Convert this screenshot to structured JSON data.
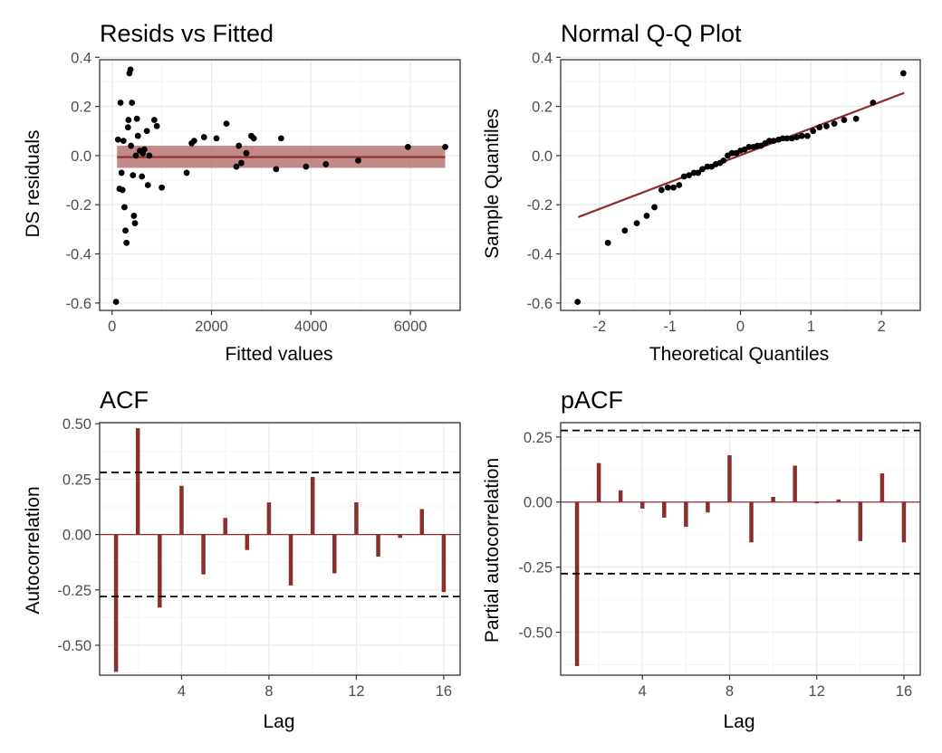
{
  "colors": {
    "mark": "#8B2E2E",
    "band": "#B56B6B",
    "point": "#000000",
    "grid_major": "#EBEBEB",
    "grid_minor": "#F5F5F5",
    "axis_text": "#4D4D4D",
    "panel_border": "#333333"
  },
  "chart_data": [
    {
      "type": "scatter",
      "title": "Resids vs Fitted",
      "xlabel": "Fitted values",
      "ylabel": "DS residuals",
      "xlim": [
        -250,
        7000
      ],
      "ylim": [
        -0.63,
        0.39
      ],
      "xticks": [
        0,
        2000,
        4000,
        6000
      ],
      "xtick_labels": [
        "0",
        "2000",
        "4000",
        "6000"
      ],
      "yticks": [
        -0.6,
        -0.4,
        -0.2,
        0.0,
        0.2,
        0.4
      ],
      "ytick_labels": [
        "-0.6",
        "-0.4",
        "-0.2",
        "0.0",
        "0.2",
        "0.4"
      ],
      "grid": true,
      "smooth": {
        "x": [
          100,
          6700
        ],
        "y": [
          -0.006,
          -0.006
        ],
        "band": [
          -0.05,
          0.04
        ]
      },
      "points": {
        "x": [
          80,
          120,
          150,
          170,
          190,
          210,
          230,
          250,
          270,
          290,
          320,
          330,
          350,
          370,
          380,
          400,
          420,
          440,
          460,
          480,
          500,
          520,
          560,
          600,
          620,
          650,
          700,
          720,
          750,
          850,
          900,
          1000,
          1500,
          1600,
          1650,
          1850,
          2100,
          2300,
          2500,
          2550,
          2600,
          2700,
          2800,
          2850,
          3300,
          3400,
          3900,
          4300,
          4950,
          5950,
          6700
        ],
        "y": [
          -0.595,
          0.065,
          -0.135,
          0.215,
          -0.07,
          -0.14,
          0.06,
          -0.21,
          -0.305,
          -0.355,
          0.115,
          0.145,
          0.335,
          0.35,
          0.04,
          0.215,
          -0.08,
          -0.245,
          -0.275,
          0.0,
          0.15,
          0.08,
          0.02,
          -0.085,
          0.01,
          0.025,
          0.1,
          -0.12,
          0.0,
          0.145,
          0.12,
          -0.13,
          -0.07,
          0.05,
          0.06,
          0.075,
          0.07,
          0.13,
          -0.045,
          0.04,
          -0.03,
          0.01,
          0.08,
          0.07,
          -0.055,
          0.07,
          -0.045,
          -0.035,
          -0.02,
          0.035,
          0.035
        ]
      }
    },
    {
      "type": "scatter",
      "title": "Normal Q-Q Plot",
      "xlabel": "Theoretical Quantiles",
      "ylabel": "Sample Quantiles",
      "xlim": [
        -2.55,
        2.55
      ],
      "ylim": [
        -0.63,
        0.39
      ],
      "xticks": [
        -2,
        -1,
        0,
        1,
        2
      ],
      "xtick_labels": [
        "-2",
        "-1",
        "0",
        "1",
        "2"
      ],
      "yticks": [
        -0.6,
        -0.4,
        -0.2,
        0.0,
        0.2,
        0.4
      ],
      "ytick_labels": [
        "-0.6",
        "-0.4",
        "-0.2",
        "0.0",
        "0.2",
        "0.4"
      ],
      "grid": true,
      "reference_line": {
        "x": [
          -2.3,
          2.32
        ],
        "y": [
          -0.25,
          0.255
        ]
      },
      "points": {
        "x": [
          -2.31,
          -1.88,
          -1.64,
          -1.47,
          -1.33,
          -1.22,
          -1.12,
          -1.03,
          -0.95,
          -0.87,
          -0.8,
          -0.73,
          -0.66,
          -0.6,
          -0.54,
          -0.47,
          -0.41,
          -0.35,
          -0.29,
          -0.24,
          -0.18,
          -0.12,
          -0.06,
          0.0,
          0.06,
          0.12,
          0.18,
          0.24,
          0.29,
          0.35,
          0.41,
          0.47,
          0.54,
          0.6,
          0.66,
          0.73,
          0.8,
          0.87,
          0.95,
          1.03,
          1.12,
          1.22,
          1.33,
          1.47,
          1.64,
          1.88,
          2.31
        ],
        "y": [
          -0.595,
          -0.355,
          -0.305,
          -0.275,
          -0.245,
          -0.21,
          -0.14,
          -0.13,
          -0.13,
          -0.12,
          -0.085,
          -0.08,
          -0.07,
          -0.07,
          -0.055,
          -0.045,
          -0.045,
          -0.035,
          -0.03,
          -0.02,
          0.0,
          0.01,
          0.01,
          0.02,
          0.025,
          0.035,
          0.035,
          0.04,
          0.04,
          0.05,
          0.06,
          0.06,
          0.065,
          0.07,
          0.07,
          0.07,
          0.075,
          0.08,
          0.08,
          0.1,
          0.115,
          0.12,
          0.13,
          0.145,
          0.15,
          0.215,
          0.335
        ]
      }
    },
    {
      "type": "bar",
      "title": "ACF",
      "xlabel": "Lag",
      "ylabel": "Autocorrelation",
      "xlim": [
        0.25,
        16.75
      ],
      "ylim": [
        -0.635,
        0.505
      ],
      "xticks": [
        4,
        8,
        12,
        16
      ],
      "xtick_labels": [
        "4",
        "8",
        "12",
        "16"
      ],
      "yticks": [
        -0.5,
        -0.25,
        0.0,
        0.25,
        0.5
      ],
      "ytick_labels": [
        "-0.50",
        "-0.25",
        "0.00",
        "0.25",
        "0.50"
      ],
      "grid": true,
      "conf_limits": [
        0.28,
        -0.28
      ],
      "categories": [
        1,
        2,
        3,
        4,
        5,
        6,
        7,
        8,
        9,
        10,
        11,
        12,
        13,
        14,
        15,
        16
      ],
      "values": [
        -0.62,
        0.48,
        -0.33,
        0.22,
        -0.18,
        0.075,
        -0.07,
        0.145,
        -0.23,
        0.26,
        -0.175,
        0.145,
        -0.1,
        -0.015,
        0.115,
        -0.26
      ]
    },
    {
      "type": "bar",
      "title": "pACF",
      "xlabel": "Lag",
      "ylabel": "Partial autocorrelation",
      "xlim": [
        0.25,
        16.75
      ],
      "ylim": [
        -0.665,
        0.305
      ],
      "xticks": [
        4,
        8,
        12,
        16
      ],
      "xtick_labels": [
        "4",
        "8",
        "12",
        "16"
      ],
      "yticks": [
        -0.5,
        -0.25,
        0.0,
        0.25
      ],
      "ytick_labels": [
        "-0.50",
        "-0.25",
        "0.00",
        "0.25"
      ],
      "grid": true,
      "conf_limits": [
        0.275,
        -0.275
      ],
      "categories": [
        1,
        2,
        3,
        4,
        5,
        6,
        7,
        8,
        9,
        10,
        11,
        12,
        13,
        14,
        15,
        16
      ],
      "values": [
        -0.63,
        0.15,
        0.045,
        -0.025,
        -0.06,
        -0.095,
        -0.04,
        0.18,
        -0.155,
        0.02,
        0.14,
        -0.005,
        0.01,
        -0.15,
        0.11,
        -0.155
      ]
    }
  ]
}
